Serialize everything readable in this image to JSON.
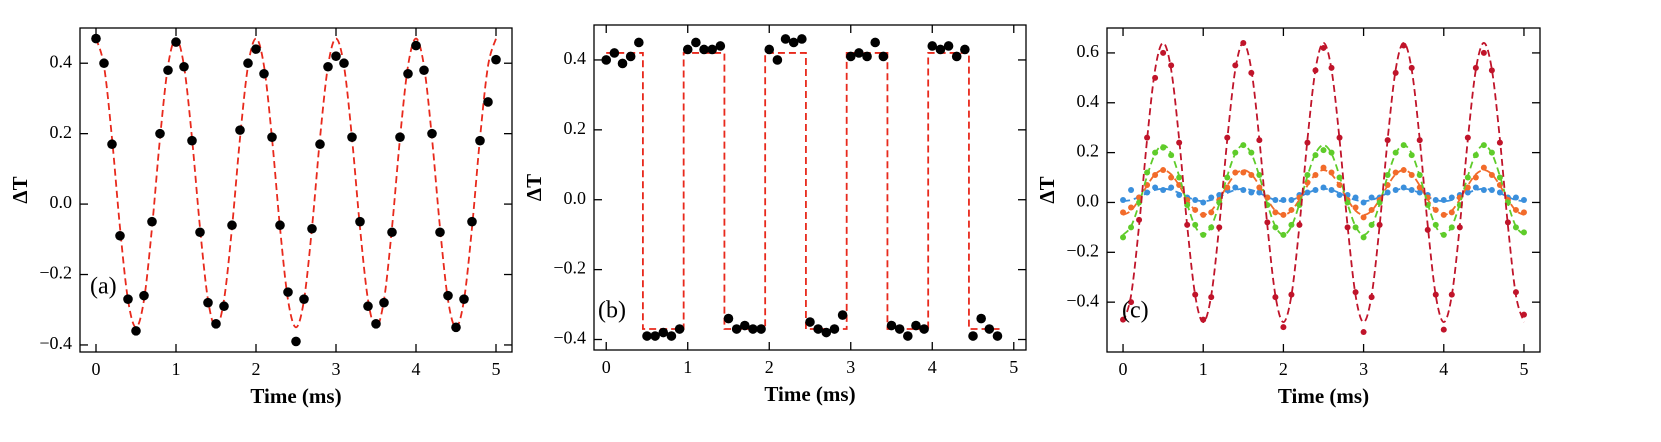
{
  "chart_data": [
    {
      "type": "scatter",
      "annotation": "(a)",
      "xlabel": "Time  (ms)",
      "ylabel": "ΔT",
      "xlim": [
        -0.2,
        5.2
      ],
      "ylim": [
        -0.42,
        0.5
      ],
      "xticks": [
        0,
        1,
        2,
        3,
        4,
        5
      ],
      "yticks": [
        {
          "value": -0.4,
          "label": "−0.4"
        },
        {
          "value": -0.2,
          "label": "−0.2"
        },
        {
          "value": 0,
          "label": "0.0"
        },
        0.2,
        0.4
      ],
      "x": [
        0,
        0.1,
        0.2,
        0.3,
        0.4,
        0.5,
        0.6,
        0.7,
        0.8,
        0.9,
        1,
        1.1,
        1.2,
        1.3,
        1.4,
        1.5,
        1.6,
        1.7,
        1.8,
        1.9,
        2,
        2.1,
        2.2,
        2.3,
        2.4,
        2.5,
        2.6,
        2.7,
        2.8,
        2.9,
        3,
        3.1,
        3.2,
        3.3,
        3.4,
        3.5,
        3.6,
        3.7,
        3.8,
        3.9,
        4,
        4.1,
        4.2,
        4.3,
        4.4,
        4.5,
        4.6,
        4.7,
        4.8,
        4.9,
        5
      ],
      "series": [
        {
          "type": "line",
          "style": "dashed",
          "smooth": true,
          "color": "#e8291c",
          "values": [
            0.47,
            0.392,
            0.187,
            -0.067,
            -0.272,
            -0.35,
            -0.272,
            -0.067,
            0.187,
            0.392,
            0.47,
            0.392,
            0.187,
            -0.067,
            -0.272,
            -0.35,
            -0.272,
            -0.067,
            0.187,
            0.392,
            0.47,
            0.392,
            0.187,
            -0.067,
            -0.272,
            -0.35,
            -0.272,
            -0.067,
            0.187,
            0.392,
            0.47,
            0.392,
            0.187,
            -0.067,
            -0.272,
            -0.35,
            -0.272,
            -0.067,
            0.187,
            0.392,
            0.47,
            0.392,
            0.187,
            -0.067,
            -0.272,
            -0.35,
            -0.272,
            -0.067,
            0.187,
            0.392,
            0.47
          ]
        },
        {
          "type": "scatter",
          "color": "#000000",
          "values": [
            0.47,
            0.4,
            0.17,
            -0.09,
            -0.27,
            -0.36,
            -0.26,
            -0.05,
            0.2,
            0.38,
            0.46,
            0.39,
            0.18,
            -0.08,
            -0.28,
            -0.34,
            -0.29,
            -0.06,
            0.21,
            0.4,
            0.44,
            0.37,
            0.19,
            -0.06,
            -0.25,
            -0.39,
            -0.27,
            -0.07,
            0.17,
            0.39,
            0.42,
            0.4,
            0.19,
            -0.05,
            -0.29,
            -0.34,
            -0.28,
            -0.08,
            0.19,
            0.37,
            0.45,
            0.38,
            0.2,
            -0.08,
            -0.26,
            -0.35,
            -0.27,
            -0.05,
            0.18,
            0.29,
            0.41
          ]
        }
      ]
    },
    {
      "type": "scatter",
      "annotation": "(b)",
      "xlabel": "Time  (ms)",
      "ylabel": "ΔT",
      "xlim": [
        -0.15,
        5.15
      ],
      "ylim": [
        -0.43,
        0.5
      ],
      "xticks": [
        0,
        1,
        2,
        3,
        4,
        5
      ],
      "yticks": [
        {
          "value": -0.4,
          "label": "−0.4"
        },
        {
          "value": -0.2,
          "label": "−0.2"
        },
        {
          "value": 0,
          "label": "0.0"
        },
        0.2,
        0.4
      ],
      "x": [
        0,
        0.1,
        0.2,
        0.3,
        0.4,
        0.5,
        0.6,
        0.7,
        0.8,
        0.9,
        1,
        1.1,
        1.2,
        1.3,
        1.4,
        1.5,
        1.6,
        1.7,
        1.8,
        1.9,
        2,
        2.1,
        2.2,
        2.3,
        2.4,
        2.5,
        2.6,
        2.7,
        2.8,
        2.9,
        3,
        3.1,
        3.2,
        3.3,
        3.4,
        3.5,
        3.6,
        3.7,
        3.8,
        3.9,
        4,
        4.1,
        4.2,
        4.3,
        4.4,
        4.5,
        4.6,
        4.7,
        4.8
      ],
      "series": [
        {
          "type": "line",
          "style": "dashed",
          "color": "#e8291c",
          "x": [
            0,
            0.45,
            0.45,
            0.95,
            0.95,
            1.45,
            1.45,
            1.95,
            1.95,
            2.45,
            2.45,
            2.95,
            2.95,
            3.45,
            3.45,
            3.95,
            3.95,
            4.45,
            4.45,
            4.85
          ],
          "values": [
            0.42,
            0.42,
            -0.37,
            -0.37,
            0.42,
            0.42,
            -0.37,
            -0.37,
            0.42,
            0.42,
            -0.37,
            -0.37,
            0.42,
            0.42,
            -0.37,
            -0.37,
            0.42,
            0.42,
            -0.37,
            -0.37
          ]
        },
        {
          "type": "scatter",
          "color": "#000000",
          "values": [
            0.4,
            0.42,
            0.39,
            0.41,
            0.45,
            -0.39,
            -0.39,
            -0.38,
            -0.39,
            -0.37,
            0.43,
            0.45,
            0.43,
            0.43,
            0.44,
            -0.34,
            -0.37,
            -0.36,
            -0.37,
            -0.37,
            0.43,
            0.4,
            0.46,
            0.45,
            0.46,
            -0.35,
            -0.37,
            -0.38,
            -0.37,
            -0.33,
            0.41,
            0.42,
            0.41,
            0.45,
            0.41,
            -0.36,
            -0.37,
            -0.39,
            -0.36,
            -0.37,
            0.44,
            0.43,
            0.44,
            0.41,
            0.43,
            -0.39,
            -0.34,
            -0.37,
            -0.39
          ]
        }
      ]
    },
    {
      "type": "scatter",
      "annotation": "(c)",
      "xlabel": "Time  (ms)",
      "ylabel": "ΔT",
      "xlim": [
        -0.2,
        5.2
      ],
      "ylim": [
        -0.6,
        0.7
      ],
      "xticks": [
        0,
        1,
        2,
        3,
        4,
        5
      ],
      "yticks": [
        {
          "value": -0.4,
          "label": "−0.4"
        },
        {
          "value": -0.2,
          "label": "−0.2"
        },
        {
          "value": 0,
          "label": "0.0"
        },
        0.2,
        0.4,
        0.6
      ],
      "x": [
        0,
        0.1,
        0.2,
        0.3,
        0.4,
        0.5,
        0.6,
        0.7,
        0.8,
        0.9,
        1,
        1.1,
        1.2,
        1.3,
        1.4,
        1.5,
        1.6,
        1.7,
        1.8,
        1.9,
        2,
        2.1,
        2.2,
        2.3,
        2.4,
        2.5,
        2.6,
        2.7,
        2.8,
        2.9,
        3,
        3.1,
        3.2,
        3.3,
        3.4,
        3.5,
        3.6,
        3.7,
        3.8,
        3.9,
        4,
        4.1,
        4.2,
        4.3,
        4.4,
        4.5,
        4.6,
        4.7,
        4.8,
        4.9,
        5
      ],
      "series": [
        {
          "type": "line",
          "style": "dashed",
          "smooth": true,
          "color": "#3a8fdc",
          "values": [
            0.005,
            0.01,
            0.022,
            0.038,
            0.05,
            0.055,
            0.05,
            0.038,
            0.022,
            0.01,
            0.005,
            0.01,
            0.022,
            0.038,
            0.05,
            0.055,
            0.05,
            0.038,
            0.022,
            0.01,
            0.005,
            0.01,
            0.022,
            0.038,
            0.05,
            0.055,
            0.05,
            0.038,
            0.022,
            0.01,
            0.005,
            0.01,
            0.022,
            0.038,
            0.05,
            0.055,
            0.05,
            0.038,
            0.022,
            0.01,
            0.005,
            0.01,
            0.022,
            0.038,
            0.05,
            0.055,
            0.05,
            0.038,
            0.022,
            0.01,
            0.005
          ]
        },
        {
          "type": "scatter",
          "color": "#3a8fdc",
          "values": [
            0.01,
            0.05,
            0.02,
            0.04,
            0.06,
            0.05,
            0.06,
            0.03,
            0.02,
            0.01,
            0.0,
            0.02,
            0.03,
            0.05,
            0.06,
            0.05,
            0.04,
            0.04,
            0.02,
            0.01,
            0.01,
            0.01,
            0.03,
            0.04,
            0.05,
            0.06,
            0.05,
            0.03,
            0.03,
            0.02,
            0.0,
            0.02,
            0.02,
            0.04,
            0.05,
            0.06,
            0.05,
            0.04,
            0.03,
            0.01,
            0.01,
            0.02,
            0.03,
            0.04,
            0.06,
            0.05,
            0.05,
            0.04,
            0.02,
            0.02,
            0.01
          ]
        },
        {
          "type": "line",
          "style": "dashed",
          "smooth": true,
          "color": "#f26b2a",
          "values": [
            -0.05,
            -0.033,
            0.012,
            0.068,
            0.113,
            0.13,
            0.113,
            0.068,
            0.012,
            -0.033,
            -0.05,
            -0.033,
            0.012,
            0.068,
            0.113,
            0.13,
            0.113,
            0.068,
            0.012,
            -0.033,
            -0.05,
            -0.033,
            0.012,
            0.068,
            0.113,
            0.13,
            0.113,
            0.068,
            0.012,
            -0.033,
            -0.05,
            -0.033,
            0.012,
            0.068,
            0.113,
            0.13,
            0.113,
            0.068,
            0.012,
            -0.033,
            -0.05,
            -0.033,
            0.012,
            0.068,
            0.113,
            0.13,
            0.113,
            0.068,
            0.012,
            -0.033,
            -0.05
          ]
        },
        {
          "type": "scatter",
          "color": "#f26b2a",
          "values": [
            -0.04,
            -0.02,
            0.02,
            0.07,
            0.11,
            0.13,
            0.1,
            0.07,
            0.01,
            -0.03,
            -0.05,
            -0.04,
            0.01,
            0.06,
            0.12,
            0.12,
            0.11,
            0.06,
            0.02,
            -0.04,
            -0.05,
            -0.03,
            0.02,
            0.08,
            0.11,
            0.14,
            0.12,
            0.07,
            0.01,
            -0.02,
            -0.06,
            -0.03,
            0.01,
            0.07,
            0.12,
            0.13,
            0.11,
            0.06,
            0.02,
            -0.03,
            -0.05,
            -0.04,
            0.02,
            0.06,
            0.1,
            0.14,
            0.11,
            0.07,
            0.01,
            -0.03,
            -0.04
          ]
        },
        {
          "type": "line",
          "style": "dashed",
          "smooth": true,
          "color": "#5fcc2a",
          "values": [
            -0.13,
            -0.096,
            -0.006,
            0.106,
            0.196,
            0.23,
            0.196,
            0.106,
            -0.006,
            -0.096,
            -0.13,
            -0.096,
            -0.006,
            0.106,
            0.196,
            0.23,
            0.196,
            0.106,
            -0.006,
            -0.096,
            -0.13,
            -0.096,
            -0.006,
            0.106,
            0.196,
            0.23,
            0.196,
            0.106,
            -0.006,
            -0.096,
            -0.13,
            -0.096,
            -0.006,
            0.106,
            0.196,
            0.23,
            0.196,
            0.106,
            -0.006,
            -0.096,
            -0.13,
            -0.096,
            -0.006,
            0.106,
            0.196,
            0.23,
            0.196,
            0.106,
            -0.006,
            -0.096,
            -0.13
          ]
        },
        {
          "type": "scatter",
          "color": "#5fcc2a",
          "values": [
            -0.14,
            -0.1,
            0.0,
            0.12,
            0.2,
            0.22,
            0.19,
            0.1,
            -0.01,
            -0.09,
            -0.13,
            -0.1,
            0.0,
            0.1,
            0.2,
            0.23,
            0.2,
            0.11,
            -0.01,
            -0.1,
            -0.13,
            -0.09,
            -0.01,
            0.11,
            0.19,
            0.21,
            0.2,
            0.1,
            0.0,
            -0.1,
            -0.14,
            -0.09,
            0.0,
            0.11,
            0.2,
            0.23,
            0.19,
            0.11,
            -0.01,
            -0.09,
            -0.13,
            -0.1,
            -0.01,
            0.1,
            0.19,
            0.23,
            0.2,
            0.1,
            0.0,
            -0.1,
            -0.12
          ]
        },
        {
          "type": "line",
          "style": "dashed",
          "smooth": true,
          "color": "#c0142a",
          "values": [
            -0.48,
            -0.373,
            -0.093,
            0.253,
            0.533,
            0.64,
            0.533,
            0.253,
            -0.093,
            -0.373,
            -0.48,
            -0.373,
            -0.093,
            0.253,
            0.533,
            0.64,
            0.533,
            0.253,
            -0.093,
            -0.373,
            -0.48,
            -0.373,
            -0.093,
            0.253,
            0.533,
            0.64,
            0.533,
            0.253,
            -0.093,
            -0.373,
            -0.48,
            -0.373,
            -0.093,
            0.253,
            0.533,
            0.64,
            0.533,
            0.253,
            -0.093,
            -0.373,
            -0.48,
            -0.373,
            -0.093,
            0.253,
            0.533,
            0.64,
            0.533,
            0.253,
            -0.093,
            -0.373,
            -0.48
          ]
        },
        {
          "type": "scatter",
          "color": "#c0142a",
          "values": [
            -0.47,
            -0.4,
            -0.07,
            0.26,
            0.5,
            0.6,
            0.55,
            0.24,
            -0.09,
            -0.37,
            -0.47,
            -0.38,
            -0.1,
            0.26,
            0.55,
            0.64,
            0.52,
            0.25,
            -0.08,
            -0.38,
            -0.5,
            -0.37,
            -0.09,
            0.24,
            0.53,
            0.62,
            0.54,
            0.26,
            -0.1,
            -0.36,
            -0.52,
            -0.38,
            -0.09,
            0.25,
            0.52,
            0.63,
            0.54,
            0.25,
            -0.11,
            -0.37,
            -0.51,
            -0.37,
            -0.1,
            0.26,
            0.54,
            0.6,
            0.53,
            0.24,
            -0.08,
            -0.36,
            -0.45
          ]
        }
      ]
    }
  ]
}
